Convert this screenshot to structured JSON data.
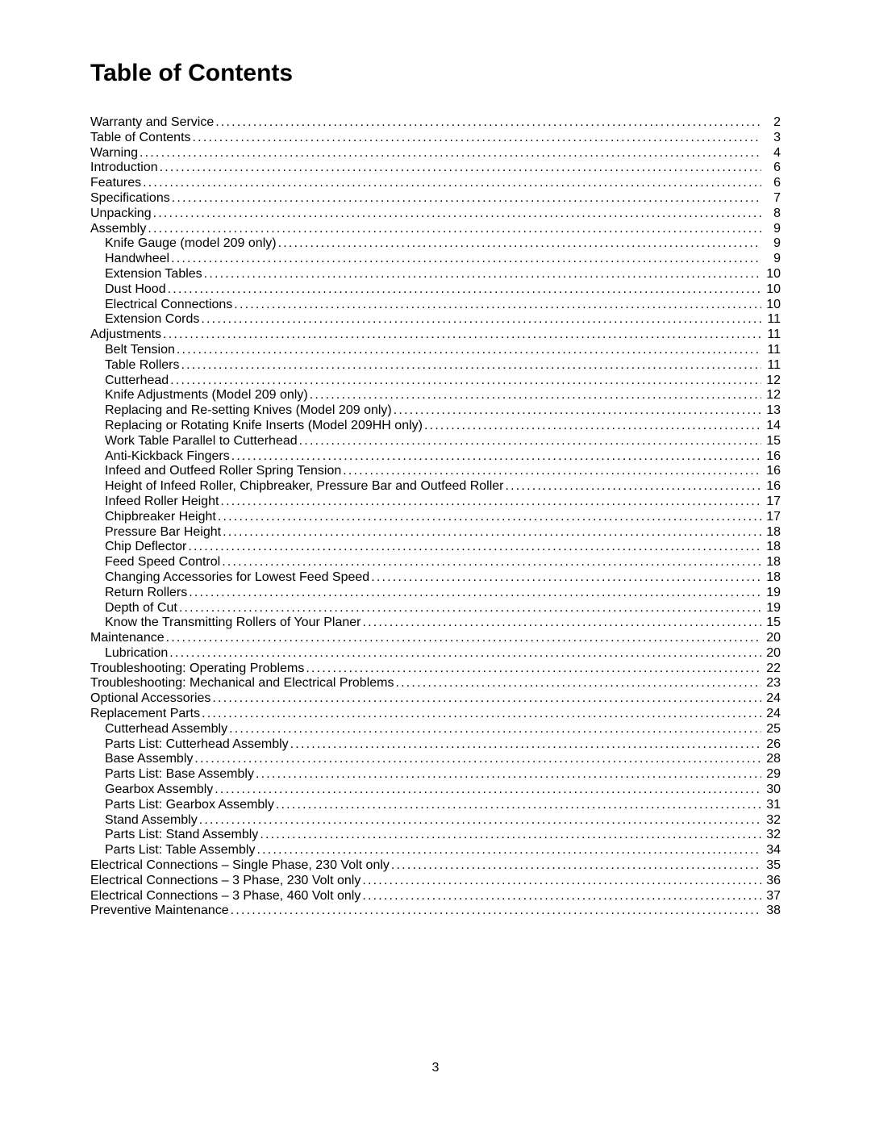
{
  "title": "Table of Contents",
  "page_number": "3",
  "entries": [
    {
      "label": "Warranty and Service",
      "page": "2",
      "indent": 0
    },
    {
      "label": "Table of Contents",
      "page": "3",
      "indent": 0
    },
    {
      "label": "Warning",
      "page": "4",
      "indent": 0
    },
    {
      "label": "Introduction",
      "page": "6",
      "indent": 0
    },
    {
      "label": "Features",
      "page": "6",
      "indent": 0
    },
    {
      "label": "Specifications",
      "page": "7",
      "indent": 0
    },
    {
      "label": "Unpacking",
      "page": "8",
      "indent": 0
    },
    {
      "label": "Assembly",
      "page": "9",
      "indent": 0
    },
    {
      "label": "Knife Gauge (model 209 only)",
      "page": "9",
      "indent": 1
    },
    {
      "label": "Handwheel",
      "page": "9",
      "indent": 1
    },
    {
      "label": "Extension Tables",
      "page": "10",
      "indent": 1
    },
    {
      "label": "Dust Hood",
      "page": "10",
      "indent": 1
    },
    {
      "label": "Electrical Connections",
      "page": "10",
      "indent": 1
    },
    {
      "label": "Extension Cords",
      "page": "11",
      "indent": 1
    },
    {
      "label": "Adjustments",
      "page": "11",
      "indent": 0
    },
    {
      "label": "Belt Tension",
      "page": "11",
      "indent": 1
    },
    {
      "label": "Table Rollers",
      "page": "11",
      "indent": 1
    },
    {
      "label": "Cutterhead",
      "page": "12",
      "indent": 1
    },
    {
      "label": "Knife Adjustments (Model 209 only)",
      "page": "12",
      "indent": 1
    },
    {
      "label": "Replacing and Re-setting Knives (Model 209 only)",
      "page": "13",
      "indent": 1
    },
    {
      "label": "Replacing or Rotating Knife Inserts (Model 209HH only)",
      "page": "14",
      "indent": 1
    },
    {
      "label": "Work Table Parallel to Cutterhead",
      "page": "15",
      "indent": 1
    },
    {
      "label": "Anti-Kickback Fingers",
      "page": "16",
      "indent": 1
    },
    {
      "label": "Infeed and Outfeed Roller Spring Tension",
      "page": "16",
      "indent": 1
    },
    {
      "label": "Height of Infeed Roller, Chipbreaker, Pressure Bar and Outfeed Roller",
      "page": "16",
      "indent": 1
    },
    {
      "label": "Infeed Roller Height",
      "page": "17",
      "indent": 1
    },
    {
      "label": "Chipbreaker Height",
      "page": "17",
      "indent": 1
    },
    {
      "label": "Pressure Bar Height",
      "page": "18",
      "indent": 1
    },
    {
      "label": "Chip Deflector",
      "page": "18",
      "indent": 1
    },
    {
      "label": "Feed Speed Control",
      "page": "18",
      "indent": 1
    },
    {
      "label": "Changing Accessories for Lowest Feed Speed",
      "page": "18",
      "indent": 1
    },
    {
      "label": "Return Rollers",
      "page": "19",
      "indent": 1
    },
    {
      "label": "Depth of Cut",
      "page": "19",
      "indent": 1
    },
    {
      "label": "Know the Transmitting Rollers of Your Planer",
      "page": "15",
      "indent": 1
    },
    {
      "label": "Maintenance",
      "page": "20",
      "indent": 0
    },
    {
      "label": "Lubrication",
      "page": "20",
      "indent": 1
    },
    {
      "label": "Troubleshooting: Operating Problems",
      "page": "22",
      "indent": 0
    },
    {
      "label": "Troubleshooting: Mechanical and Electrical Problems",
      "page": "23",
      "indent": 0
    },
    {
      "label": "Optional Accessories",
      "page": "24",
      "indent": 0
    },
    {
      "label": "Replacement Parts",
      "page": "24",
      "indent": 0
    },
    {
      "label": "Cutterhead Assembly",
      "page": "25",
      "indent": 1
    },
    {
      "label": "Parts List: Cutterhead Assembly",
      "page": "26",
      "indent": 1
    },
    {
      "label": "Base Assembly",
      "page": "28",
      "indent": 1
    },
    {
      "label": "Parts List: Base Assembly",
      "page": "29",
      "indent": 1
    },
    {
      "label": "Gearbox Assembly",
      "page": "30",
      "indent": 1
    },
    {
      "label": "Parts List: Gearbox Assembly",
      "page": "31",
      "indent": 1
    },
    {
      "label": "Stand Assembly",
      "page": "32",
      "indent": 1
    },
    {
      "label": "Parts List: Stand Assembly",
      "page": "32",
      "indent": 1
    },
    {
      "label": "Parts List: Table Assembly",
      "page": "34",
      "indent": 1
    },
    {
      "label": "Electrical Connections – Single Phase, 230 Volt only",
      "page": "35",
      "indent": 0
    },
    {
      "label": "Electrical Connections – 3 Phase, 230 Volt only",
      "page": "36",
      "indent": 0
    },
    {
      "label": "Electrical Connections – 3 Phase, 460 Volt only",
      "page": "37",
      "indent": 0
    },
    {
      "label": "Preventive Maintenance",
      "page": "38",
      "indent": 0
    }
  ]
}
